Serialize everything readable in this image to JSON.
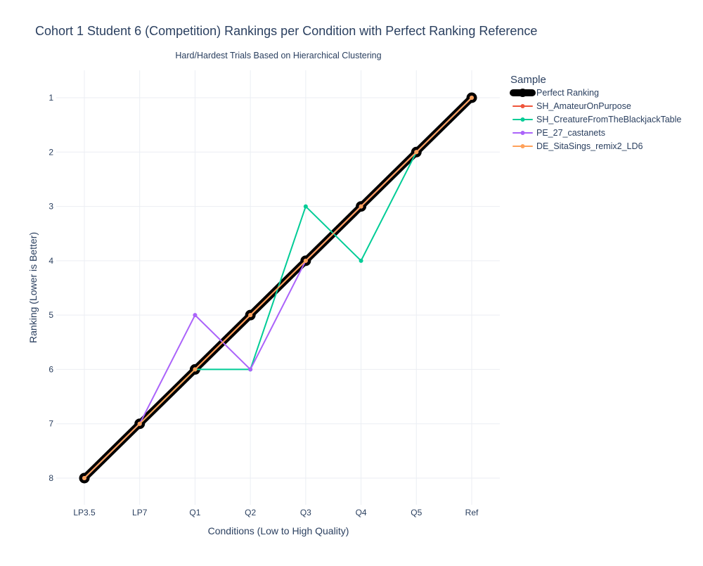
{
  "chart_data": {
    "type": "line",
    "title": "Cohort 1 Student 6 (Competition) Rankings per Condition with Perfect Ranking Reference",
    "subtitle": "Hard/Hardest Trials Based on Hierarchical Clustering",
    "xlabel": "Conditions (Low to High Quality)",
    "ylabel": "Ranking (Lower is Better)",
    "categories": [
      "LP3.5",
      "LP7",
      "Q1",
      "Q2",
      "Q3",
      "Q4",
      "Q5",
      "Ref"
    ],
    "y_ticks": [
      1,
      2,
      3,
      4,
      5,
      6,
      7,
      8
    ],
    "ylim": [
      8.5,
      0.5
    ],
    "y_reversed": true,
    "grid": true,
    "legend": {
      "title": "Sample",
      "placement": "top-right outside"
    },
    "series": [
      {
        "name": "Perfect Ranking",
        "color": "#000000",
        "style": "thick",
        "values": [
          8,
          7,
          6,
          5,
          4,
          3,
          2,
          1
        ]
      },
      {
        "name": "SH_AmateurOnPurpose",
        "color": "#EF553B",
        "values": [
          8,
          7,
          6,
          5,
          4,
          3,
          2,
          1
        ]
      },
      {
        "name": "SH_CreatureFromTheBlackjackTable",
        "color": "#00CC96",
        "values": [
          8,
          7,
          6,
          6,
          3,
          4,
          2,
          1
        ]
      },
      {
        "name": "PE_27_castanets",
        "color": "#AB63FA",
        "values": [
          8,
          7,
          5,
          6,
          4,
          3,
          2,
          1
        ]
      },
      {
        "name": "DE_SitaSings_remix2_LD6",
        "color": "#FFA15A",
        "values": [
          8,
          7,
          6,
          5,
          4,
          3,
          2,
          1
        ]
      }
    ]
  }
}
